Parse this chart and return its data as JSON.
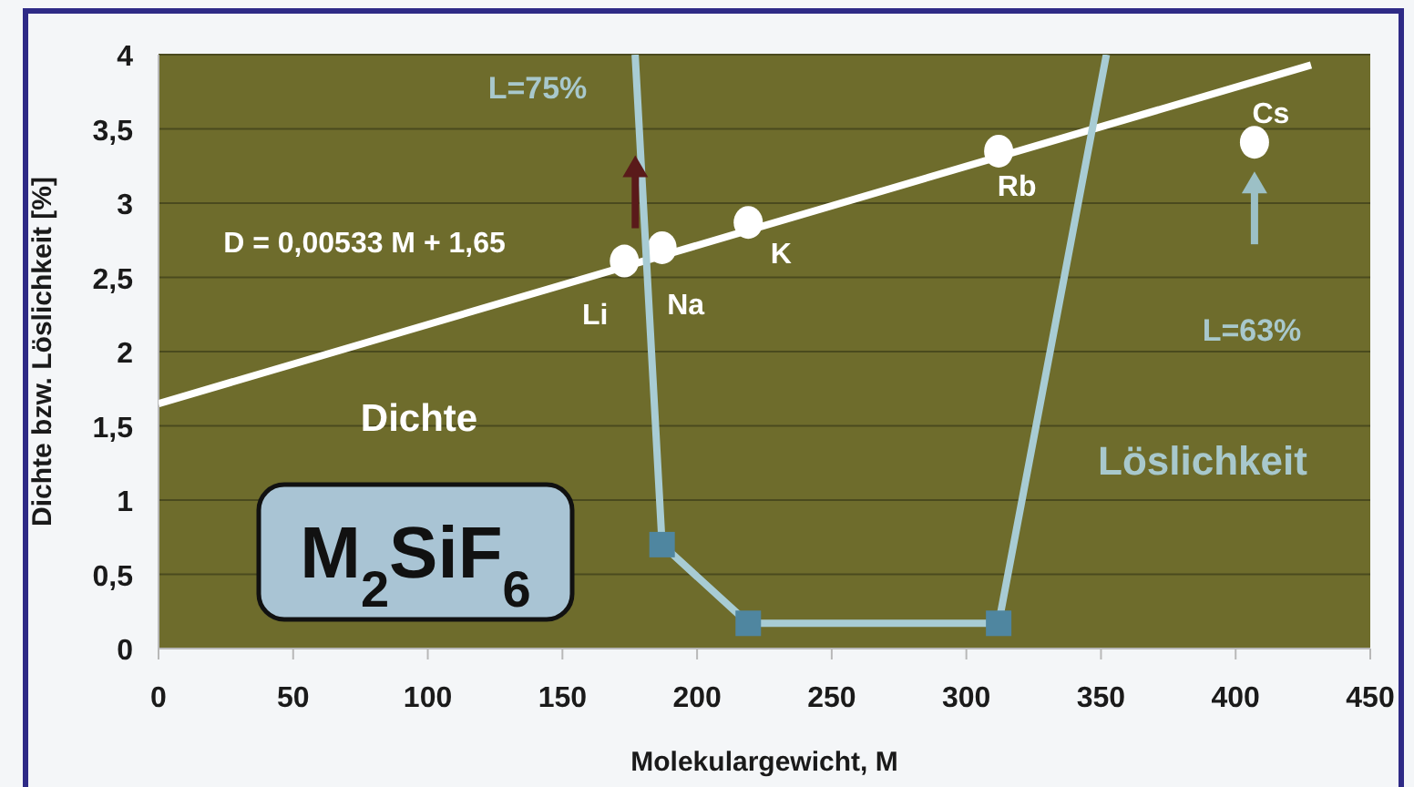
{
  "chart_data": {
    "type": "scatter",
    "xlabel": "Molekulargewicht, M",
    "ylabel": "Dichte bzw. Löslichkeit [%]",
    "xlim": [
      0,
      450
    ],
    "xticks": [
      0,
      50,
      100,
      150,
      200,
      250,
      300,
      350,
      400,
      450
    ],
    "ylim": [
      0,
      4
    ],
    "yticks": [
      0,
      {
        "value": 0.5,
        "label": "0,5"
      },
      1,
      {
        "value": 1.5,
        "label": "1,5"
      },
      2,
      {
        "value": 2.5,
        "label": "2,5"
      },
      3,
      {
        "value": 3.5,
        "label": "3,5"
      },
      4
    ],
    "grid": "y",
    "series": [
      {
        "type": "line",
        "color": "#ffffff",
        "marker": "none",
        "x": [
          0,
          428
        ],
        "values": [
          1.65,
          3.93
        ]
      },
      {
        "type": "scatter",
        "color": "#ffffff",
        "marker": "circle",
        "x": [
          173,
          187,
          219,
          312,
          407
        ],
        "values": [
          2.61,
          2.7,
          2.87,
          3.35,
          3.41
        ]
      },
      {
        "type": "line",
        "color": "#a8ccd4",
        "marker": "none",
        "x": [
          177,
          187,
          219,
          312,
          352
        ],
        "values": [
          4,
          0.7,
          0.17,
          0.17,
          4
        ]
      },
      {
        "type": "scatter",
        "color": "#4f86a0",
        "marker": "square",
        "x": [
          187,
          219,
          312
        ],
        "values": [
          0.7,
          0.17,
          0.17
        ]
      }
    ],
    "annotations": [
      "L=75%",
      "D = 0,00533 M + 1,65",
      {
        "text": "Li",
        "x": 173,
        "y": 2.61
      },
      {
        "text": "Na",
        "x": 187,
        "y": 2.7
      },
      {
        "text": "K",
        "x": 219,
        "y": 2.87
      },
      {
        "text": "Rb",
        "x": 312,
        "y": 3.35
      },
      {
        "text": "Cs",
        "x": 407,
        "y": 3.41
      },
      "L=63%",
      "Dichte",
      "Löslichkeit",
      "M$_{2}$SiF$_{6}$"
    ]
  }
}
